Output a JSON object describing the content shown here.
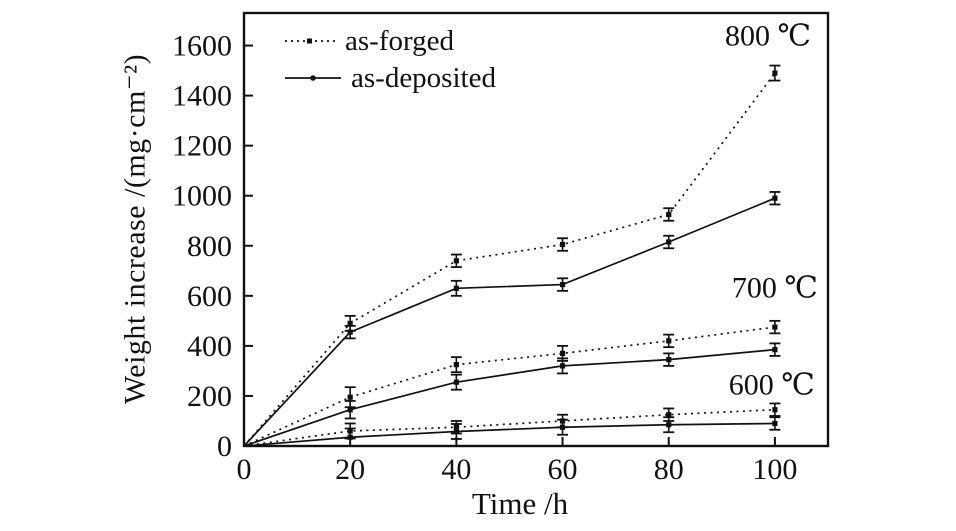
{
  "figure": {
    "background": "#ffffff",
    "line_color": "#111111"
  },
  "chart_data": {
    "type": "line",
    "title": "",
    "xlabel": "Time /h",
    "ylabel": "Weight increase /(mg·cm⁻²)",
    "xlim": [
      0,
      110
    ],
    "ylim": [
      0,
      1730
    ],
    "xticks": [
      0,
      20,
      40,
      60,
      80,
      100
    ],
    "yticks": [
      0,
      200,
      400,
      600,
      800,
      1000,
      1200,
      1400,
      1600
    ],
    "grid": false,
    "legend_position": "top-left-inside",
    "legend": [
      {
        "label": "as-forged",
        "style": "dotted"
      },
      {
        "label": "as-deposited",
        "style": "solid"
      }
    ],
    "x": [
      0,
      20,
      40,
      60,
      80,
      100
    ],
    "series": [
      {
        "name": "as-forged",
        "temperature": "800 ℃",
        "style": "dotted",
        "values": [
          0,
          490,
          740,
          805,
          925,
          1490
        ],
        "errors": [
          0,
          30,
          25,
          25,
          25,
          30
        ]
      },
      {
        "name": "as-deposited",
        "temperature": "800 ℃",
        "style": "solid",
        "values": [
          0,
          455,
          630,
          645,
          815,
          990
        ],
        "errors": [
          0,
          25,
          30,
          25,
          25,
          25
        ]
      },
      {
        "name": "as-forged",
        "temperature": "700 ℃",
        "style": "dotted",
        "values": [
          0,
          195,
          325,
          370,
          420,
          475
        ],
        "errors": [
          0,
          40,
          30,
          30,
          25,
          25
        ]
      },
      {
        "name": "as-deposited",
        "temperature": "700 ℃",
        "style": "solid",
        "values": [
          0,
          145,
          255,
          320,
          345,
          385
        ],
        "errors": [
          0,
          35,
          30,
          30,
          25,
          25
        ]
      },
      {
        "name": "as-forged",
        "temperature": "600 ℃",
        "style": "dotted",
        "values": [
          0,
          60,
          75,
          100,
          125,
          145
        ],
        "errors": [
          0,
          30,
          25,
          25,
          25,
          25
        ]
      },
      {
        "name": "as-deposited",
        "temperature": "600 ℃",
        "style": "solid",
        "values": [
          0,
          35,
          58,
          75,
          85,
          90
        ],
        "errors": [
          0,
          35,
          30,
          30,
          30,
          25
        ]
      }
    ],
    "annotations": [
      {
        "text": "800 ℃",
        "x": 98.7,
        "y": 1640
      },
      {
        "text": "700 ℃",
        "x": 100.0,
        "y": 632
      },
      {
        "text": "600 ℃",
        "x": 99.4,
        "y": 243
      }
    ]
  }
}
